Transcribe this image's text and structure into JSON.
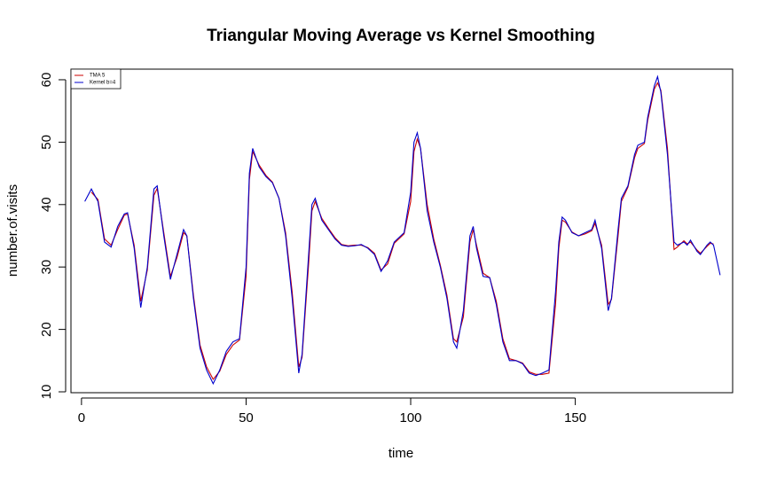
{
  "chart_data": {
    "type": "line",
    "title": "Triangular Moving Average vs Kernel Smoothing",
    "x_label": "time",
    "y_label": "number.of.visits",
    "x": [
      1,
      3,
      5,
      7,
      9,
      11,
      13,
      14,
      16,
      18,
      20,
      22,
      23,
      25,
      27,
      29,
      31,
      32,
      34,
      36,
      38,
      40,
      42,
      44,
      46,
      48,
      50,
      51,
      52,
      54,
      56,
      58,
      60,
      62,
      64,
      66,
      67,
      69,
      70,
      71,
      73,
      75,
      77,
      79,
      81,
      83,
      85,
      87,
      89,
      91,
      93,
      95,
      98,
      100,
      101,
      102,
      103,
      105,
      107,
      109,
      111,
      113,
      114,
      116,
      118,
      119,
      120,
      122,
      124,
      126,
      128,
      130,
      132,
      134,
      136,
      138,
      140,
      142,
      144,
      145,
      146,
      147,
      149,
      151,
      153,
      155,
      156,
      158,
      160,
      161,
      163,
      164,
      166,
      168,
      169,
      171,
      172,
      174,
      175,
      176,
      178,
      180,
      181,
      183,
      184,
      185,
      187,
      188,
      190,
      191,
      192,
      194
    ],
    "series": [
      {
        "name": "TMA 5",
        "color": "#cc0000",
        "values": [
          null,
          42,
          40.8,
          34.5,
          33.5,
          36,
          38.3,
          38.5,
          33.5,
          24.5,
          29.5,
          41.5,
          42.6,
          35.5,
          28.5,
          31.5,
          35.5,
          35,
          25.5,
          17.5,
          14,
          12,
          13.3,
          16,
          17.5,
          18.3,
          28.5,
          44,
          48.5,
          46.3,
          44.7,
          43.6,
          41,
          35.5,
          26,
          14,
          15.5,
          30.5,
          39,
          40.5,
          37.8,
          36.2,
          34.7,
          33.6,
          33.4,
          33.5,
          33.5,
          33.1,
          32.2,
          29.5,
          30.5,
          33.8,
          35.3,
          40.5,
          48.5,
          50.5,
          49,
          40,
          34.5,
          30.3,
          25.5,
          18.5,
          18,
          22,
          34,
          36,
          33.5,
          29,
          28.3,
          24.5,
          18.5,
          15.3,
          15,
          14.6,
          13.2,
          12.8,
          12.8,
          13,
          24,
          33,
          37.5,
          37.2,
          35.6,
          35,
          35.3,
          35.8,
          37,
          33.5,
          24,
          24.8,
          35,
          40.5,
          42.8,
          47.5,
          49,
          49.8,
          53.5,
          58.5,
          59.5,
          58.3,
          49,
          32.8,
          33.2,
          34.2,
          33.7,
          34,
          32.7,
          32.2,
          33.3,
          33.8,
          33.7,
          null
        ]
      },
      {
        "name": "Kernel b=4",
        "color": "#0000cc",
        "values": [
          40.5,
          42.5,
          40.5,
          34,
          33.2,
          36.5,
          38.5,
          38.7,
          33,
          23.5,
          30,
          42.5,
          43,
          35,
          28,
          32,
          36,
          35,
          25,
          17,
          13.5,
          11.3,
          13.5,
          16.5,
          18,
          18.5,
          30,
          45,
          49,
          46,
          44.5,
          43.5,
          41,
          35,
          25,
          13,
          16,
          32,
          40,
          41,
          37.5,
          36,
          34.5,
          33.5,
          33.3,
          33.4,
          33.6,
          33,
          32,
          29.3,
          31,
          34,
          35.5,
          42,
          50,
          51.5,
          49,
          39,
          34,
          30,
          25,
          18,
          17,
          23,
          35,
          36.5,
          33,
          28.5,
          28.3,
          24,
          18,
          15,
          15,
          14.5,
          13,
          12.6,
          13,
          13.5,
          26,
          34,
          38,
          37.5,
          35.5,
          35,
          35.5,
          36,
          37.5,
          33,
          23,
          25,
          36,
          41,
          43,
          48,
          49.5,
          50,
          54,
          59,
          60.5,
          58,
          48,
          34,
          33.5,
          34,
          33.5,
          34.3,
          32.5,
          32,
          33.5,
          34,
          33.5,
          28.7
        ]
      }
    ],
    "xlim": [
      -3.2,
      197.8
    ],
    "ylim": [
      9.86,
      61.7
    ],
    "xticks": [
      0,
      50,
      100,
      150
    ],
    "yticks": [
      10,
      20,
      30,
      40,
      50,
      60
    ],
    "legend": "topleft"
  }
}
